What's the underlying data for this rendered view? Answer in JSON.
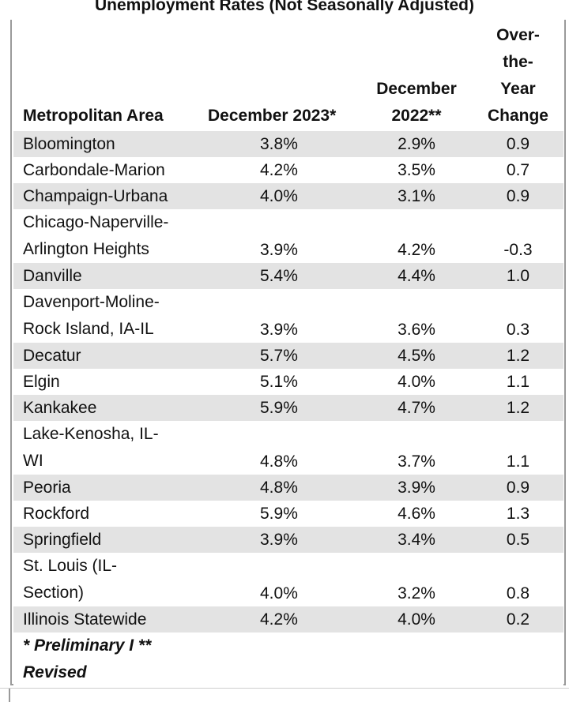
{
  "title": "Unemployment Rates (Not Seasonally Adjusted)",
  "table": {
    "headers": {
      "area": "Metropolitan Area",
      "current": "December  2023*",
      "prior_lines": [
        "December",
        "2022**"
      ],
      "change_lines": [
        "Over-",
        "the-",
        "Year",
        "Change"
      ]
    },
    "rows": [
      {
        "area_lines": [
          "Bloomington"
        ],
        "dec2023": "3.8%",
        "dec2022": "2.9%",
        "change": "0.9"
      },
      {
        "area_lines": [
          "Carbondale-Marion"
        ],
        "dec2023": "4.2%",
        "dec2022": "3.5%",
        "change": "0.7"
      },
      {
        "area_lines": [
          "Champaign-Urbana"
        ],
        "dec2023": "4.0%",
        "dec2022": "3.1%",
        "change": "0.9"
      },
      {
        "area_lines": [
          "Chicago-Naperville-",
          "Arlington Heights"
        ],
        "dec2023": "3.9%",
        "dec2022": "4.2%",
        "change": "-0.3"
      },
      {
        "area_lines": [
          "Danville"
        ],
        "dec2023": "5.4%",
        "dec2022": "4.4%",
        "change": "1.0"
      },
      {
        "area_lines": [
          "Davenport-Moline-",
          "Rock Island, IA-IL"
        ],
        "dec2023": "3.9%",
        "dec2022": "3.6%",
        "change": "0.3"
      },
      {
        "area_lines": [
          "Decatur"
        ],
        "dec2023": "5.7%",
        "dec2022": "4.5%",
        "change": "1.2"
      },
      {
        "area_lines": [
          "Elgin"
        ],
        "dec2023": "5.1%",
        "dec2022": "4.0%",
        "change": "1.1"
      },
      {
        "area_lines": [
          "Kankakee"
        ],
        "dec2023": "5.9%",
        "dec2022": "4.7%",
        "change": "1.2"
      },
      {
        "area_lines": [
          "Lake-Kenosha, IL-",
          "WI"
        ],
        "dec2023": "4.8%",
        "dec2022": "3.7%",
        "change": "1.1"
      },
      {
        "area_lines": [
          "Peoria"
        ],
        "dec2023": "4.8%",
        "dec2022": "3.9%",
        "change": "0.9"
      },
      {
        "area_lines": [
          "Rockford"
        ],
        "dec2023": "5.9%",
        "dec2022": "4.6%",
        "change": "1.3"
      },
      {
        "area_lines": [
          "Springfield"
        ],
        "dec2023": "3.9%",
        "dec2022": "3.4%",
        "change": "0.5"
      },
      {
        "area_lines": [
          "St. Louis (IL-",
          "Section)"
        ],
        "dec2023": "4.0%",
        "dec2022": "3.2%",
        "change": "0.8"
      },
      {
        "area_lines": [
          "Illinois Statewide"
        ],
        "dec2023": "4.2%",
        "dec2022": "4.0%",
        "change": "0.2"
      }
    ],
    "footnote_lines": [
      "* Preliminary  I  **",
      "Revised"
    ],
    "shaded_row_color": "#e3e3e3"
  }
}
